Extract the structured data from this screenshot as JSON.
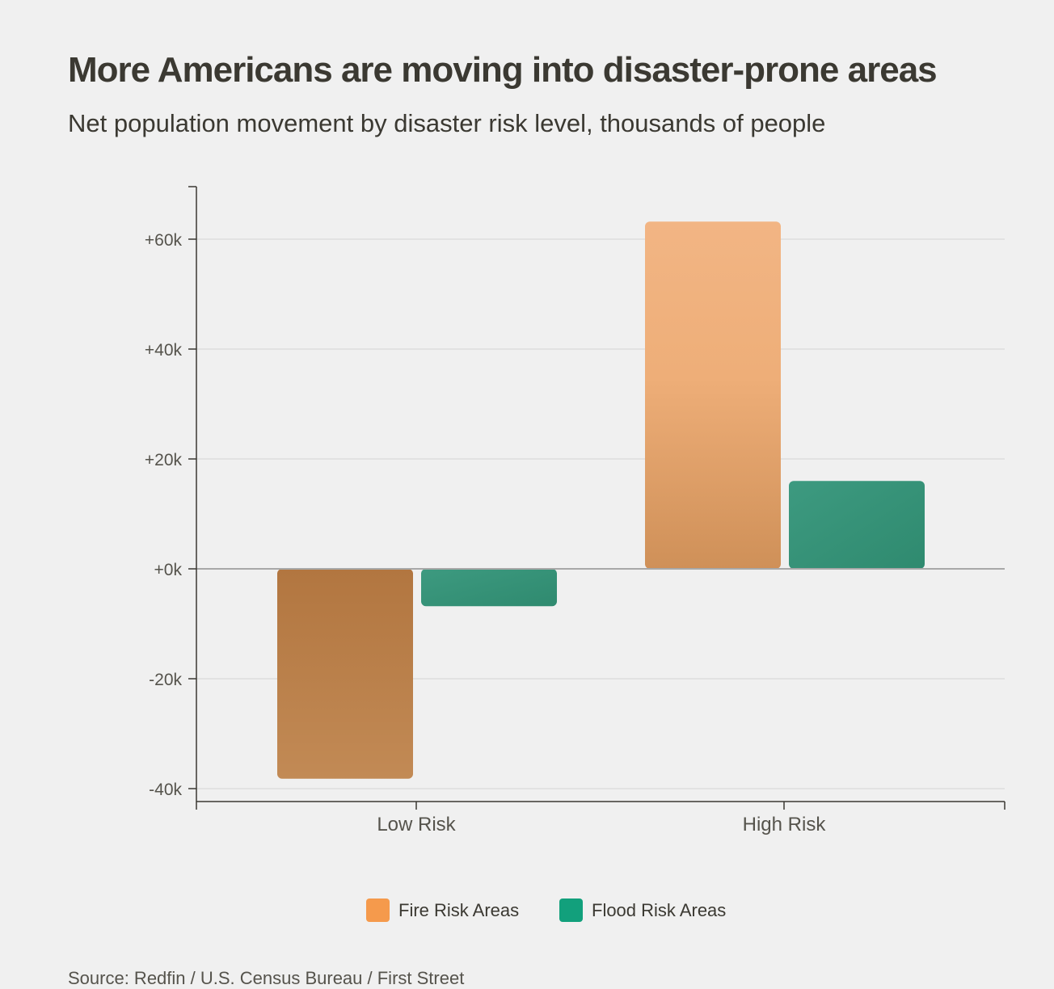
{
  "chart_data": {
    "type": "bar",
    "title": "More Americans are moving into disaster-prone areas",
    "subtitle": "Net population movement by disaster risk level, thousands of people",
    "categories": [
      "Low Risk",
      "High Risk"
    ],
    "series": [
      {
        "name": "Fire Risk Areas",
        "color": "#f59a4c",
        "values": [
          -38.2,
          63.2
        ]
      },
      {
        "name": "Flood Risk Areas",
        "color": "#12a07c",
        "values": [
          -6.8,
          16.0
        ]
      }
    ],
    "ylim": [
      -42,
      70
    ],
    "yticks": [
      -40,
      -20,
      0,
      20,
      40,
      60
    ],
    "ytick_labels": [
      "-40k",
      "-20k",
      "+0k",
      "+20k",
      "+40k",
      "+60k"
    ],
    "grid": true,
    "legend": "bottom",
    "xlabel": "",
    "ylabel": ""
  },
  "source": "Source: Redfin / U.S. Census Bureau / First Street"
}
